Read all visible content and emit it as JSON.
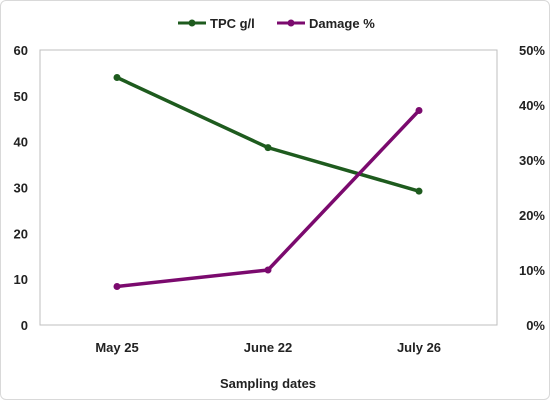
{
  "chart_data": {
    "type": "line",
    "categories": [
      "May 25",
      "June 22",
      "July 26"
    ],
    "xlabel": "Sampling dates",
    "series": [
      {
        "name": "TPC g/l",
        "axis": "left",
        "values": [
          54,
          38.7,
          29.2
        ],
        "color": "#1e5b1e"
      },
      {
        "name": "Damage %",
        "axis": "right",
        "values": [
          0.07,
          0.1,
          0.39
        ],
        "color": "#7b0a6e"
      }
    ],
    "y_left": {
      "ylim": [
        0,
        60
      ],
      "ticks": [
        0,
        10,
        20,
        30,
        40,
        50,
        60
      ],
      "tick_labels": [
        "0",
        "10",
        "20",
        "30",
        "40",
        "50",
        "60"
      ]
    },
    "y_right": {
      "ylim": [
        0,
        0.5
      ],
      "ticks": [
        0,
        0.1,
        0.2,
        0.3,
        0.4,
        0.5
      ],
      "tick_labels": [
        "0%",
        "10%",
        "20%",
        "30%",
        "40%",
        "50%"
      ]
    },
    "legend": {
      "position": "top",
      "entries": [
        "TPC g/l",
        "Damage %"
      ]
    },
    "grid": false
  }
}
